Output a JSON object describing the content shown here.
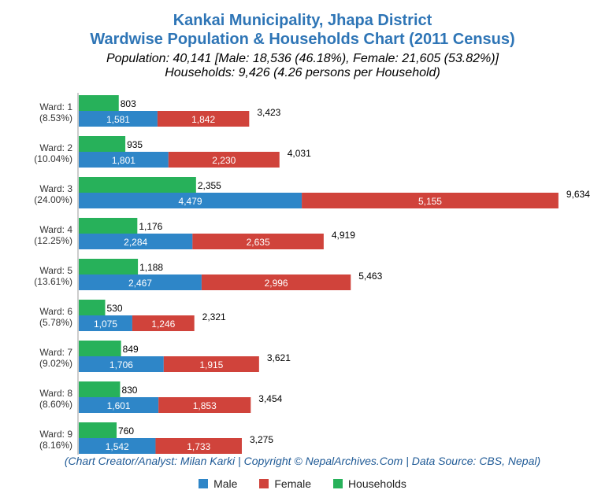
{
  "header": {
    "title_line1": "Kankai Municipality, Jhapa District",
    "title_line2": "Wardwise Population & Households Chart (2011 Census)",
    "subtitle_line1": "Population: 40,141 [Male: 18,536 (46.18%), Female: 21,605 (53.82%)]",
    "subtitle_line2": "Households: 9,426 (4.26 persons per Household)"
  },
  "footer": {
    "credit": "(Chart Creator/Analyst: Milan Karki | Copyright © NepalArchives.Com | Data Source: CBS, Nepal)"
  },
  "colors": {
    "male": "#2e86c8",
    "female": "#d0433b",
    "households": "#27b15a",
    "title": "#2e75b6"
  },
  "chart_data": {
    "type": "bar",
    "orientation": "horizontal",
    "stacked_population": true,
    "categories": [
      "Ward: 1",
      "Ward: 2",
      "Ward: 3",
      "Ward: 4",
      "Ward: 5",
      "Ward: 6",
      "Ward: 7",
      "Ward: 8",
      "Ward: 9"
    ],
    "category_percents": [
      "(8.53%)",
      "(10.04%)",
      "(24.00%)",
      "(12.25%)",
      "(13.61%)",
      "(5.78%)",
      "(9.02%)",
      "(8.60%)",
      "(8.16%)"
    ],
    "series": [
      {
        "name": "Male",
        "key": "male",
        "values": [
          1581,
          1801,
          4479,
          2284,
          2467,
          1075,
          1706,
          1601,
          1542
        ]
      },
      {
        "name": "Female",
        "key": "female",
        "values": [
          1842,
          2230,
          5155,
          2635,
          2996,
          1246,
          1915,
          1853,
          1733
        ]
      },
      {
        "name": "Households",
        "key": "households",
        "values": [
          803,
          935,
          2355,
          1176,
          1188,
          530,
          849,
          830,
          760
        ]
      }
    ],
    "totals": [
      3423,
      4031,
      9634,
      4919,
      5463,
      2321,
      3621,
      3454,
      3275
    ],
    "legend": [
      "Male",
      "Female",
      "Households"
    ],
    "legend_position": "bottom",
    "xlim": [
      0,
      10000
    ],
    "grid": false
  }
}
